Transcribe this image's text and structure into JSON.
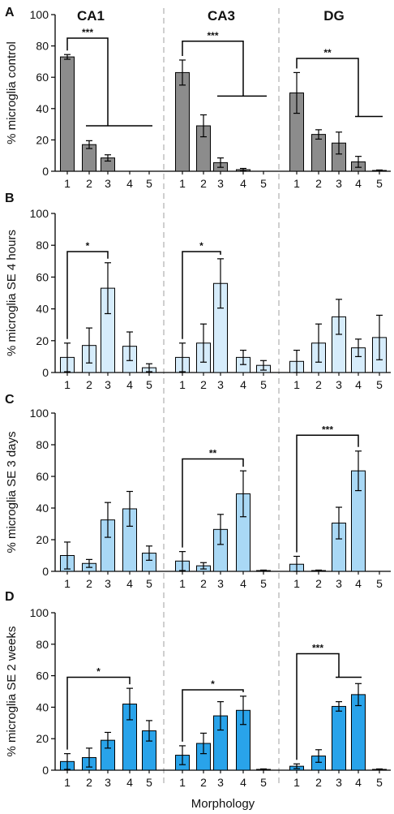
{
  "colors": {
    "control": "#8c8c8c",
    "se_4h": "#d6ecfb",
    "se_3d": "#a9d8f5",
    "se_2w": "#29a3ea",
    "separator": "#b5b5b5",
    "axis": "#000000"
  },
  "figure": {
    "region_titles": [
      "CA1",
      "CA3",
      "DG"
    ],
    "xlabel": "Morphology"
  },
  "chart_data": [
    {
      "panel": "A",
      "type": "bar",
      "ylabel": "% microglia control",
      "ylim": [
        0,
        100
      ],
      "yticks": [
        0,
        20,
        40,
        60,
        80,
        100
      ],
      "categories": [
        "1",
        "2",
        "3",
        "4",
        "5"
      ],
      "regions": [
        {
          "name": "CA1",
          "values": [
            73,
            17,
            8.5,
            0,
            0
          ],
          "errors": [
            1.5,
            2.5,
            2,
            0,
            0
          ],
          "sig": [
            {
              "label": "***",
              "from": "1",
              "to": "3",
              "y": 85,
              "branch": {
                "y": 29,
                "from": "2",
                "to": "5"
              }
            }
          ]
        },
        {
          "name": "CA3",
          "values": [
            63,
            29,
            5.5,
            1,
            0
          ],
          "errors": [
            8,
            7,
            3,
            0.8,
            0
          ],
          "sig": [
            {
              "label": "***",
              "from": "1",
              "to": "4",
              "y": 83,
              "branch": {
                "y": 48,
                "from": "3",
                "to": "5"
              }
            }
          ]
        },
        {
          "name": "DG",
          "values": [
            50,
            23.5,
            18,
            6,
            0.5
          ],
          "errors": [
            13,
            3,
            7,
            3.5,
            0.3
          ],
          "sig": [
            {
              "label": "**",
              "from": "1",
              "to": "4",
              "y": 72,
              "branch": {
                "y": 35,
                "from": "4",
                "to": "5"
              }
            }
          ]
        }
      ]
    },
    {
      "panel": "B",
      "type": "bar",
      "ylabel": "% microglia SE 4 hours",
      "ylim": [
        0,
        100
      ],
      "yticks": [
        0,
        20,
        40,
        60,
        80,
        100
      ],
      "categories": [
        "1",
        "2",
        "3",
        "4",
        "5"
      ],
      "regions": [
        {
          "name": "CA1",
          "values": [
            9.5,
            17,
            53,
            16.5,
            3
          ],
          "errors": [
            9,
            11,
            16,
            9,
            2.5
          ],
          "sig": [
            {
              "label": "*",
              "from": "1",
              "to": "3",
              "y": 76
            }
          ]
        },
        {
          "name": "CA3",
          "values": [
            9.5,
            18.5,
            56,
            9.5,
            4.5
          ],
          "errors": [
            9,
            12,
            15.5,
            4.5,
            3
          ],
          "sig": [
            {
              "label": "*",
              "from": "1",
              "to": "3",
              "y": 76
            }
          ]
        },
        {
          "name": "DG",
          "values": [
            7,
            18.5,
            35,
            15.5,
            22
          ],
          "errors": [
            7,
            12,
            11,
            5.5,
            14
          ],
          "sig": []
        }
      ]
    },
    {
      "panel": "C",
      "type": "bar",
      "ylabel": "% microglia SE 3 days",
      "ylim": [
        0,
        100
      ],
      "yticks": [
        0,
        20,
        40,
        60,
        80,
        100
      ],
      "categories": [
        "1",
        "2",
        "3",
        "4",
        "5"
      ],
      "regions": [
        {
          "name": "CA1",
          "values": [
            10,
            5,
            32.5,
            39.5,
            11.5
          ],
          "errors": [
            8.5,
            2.5,
            11,
            11,
            4.5
          ],
          "sig": []
        },
        {
          "name": "CA3",
          "values": [
            6.5,
            3.5,
            26.5,
            49,
            0.5
          ],
          "errors": [
            6,
            2,
            9.5,
            14.5,
            0.3
          ],
          "sig": [
            {
              "label": "**",
              "from": "1",
              "to": "4",
              "y": 71
            }
          ]
        },
        {
          "name": "DG",
          "values": [
            4.5,
            0.5,
            30.5,
            63.5,
            0
          ],
          "errors": [
            5,
            0.3,
            10,
            12.5,
            0
          ],
          "sig": [
            {
              "label": "***",
              "from": "1",
              "to": "4",
              "y": 86
            }
          ]
        }
      ]
    },
    {
      "panel": "D",
      "type": "bar",
      "ylabel": "% microglia SE 2 weeks",
      "ylim": [
        0,
        100
      ],
      "yticks": [
        0,
        20,
        40,
        60,
        80,
        100
      ],
      "categories": [
        "1",
        "2",
        "3",
        "4",
        "5"
      ],
      "regions": [
        {
          "name": "CA1",
          "values": [
            5.5,
            8,
            19,
            42,
            25
          ],
          "errors": [
            5,
            6,
            5,
            10,
            6.5
          ],
          "sig": [
            {
              "label": "*",
              "from": "1",
              "to": "4",
              "y": 59
            }
          ]
        },
        {
          "name": "CA3",
          "values": [
            9.5,
            17,
            34.5,
            38,
            0.5
          ],
          "errors": [
            6,
            6.5,
            9,
            9,
            0.3
          ],
          "sig": [
            {
              "label": "*",
              "from": "1",
              "to": "4",
              "y": 51
            }
          ]
        },
        {
          "name": "DG",
          "values": [
            2.5,
            9,
            40.5,
            48,
            0.5
          ],
          "errors": [
            1.5,
            4,
            3,
            7,
            0.3
          ],
          "sig": [
            {
              "label": "***",
              "from": "1",
              "to": "3",
              "y": 74,
              "branch": {
                "y": 59,
                "from": "3",
                "to": "4"
              }
            }
          ]
        }
      ]
    }
  ]
}
